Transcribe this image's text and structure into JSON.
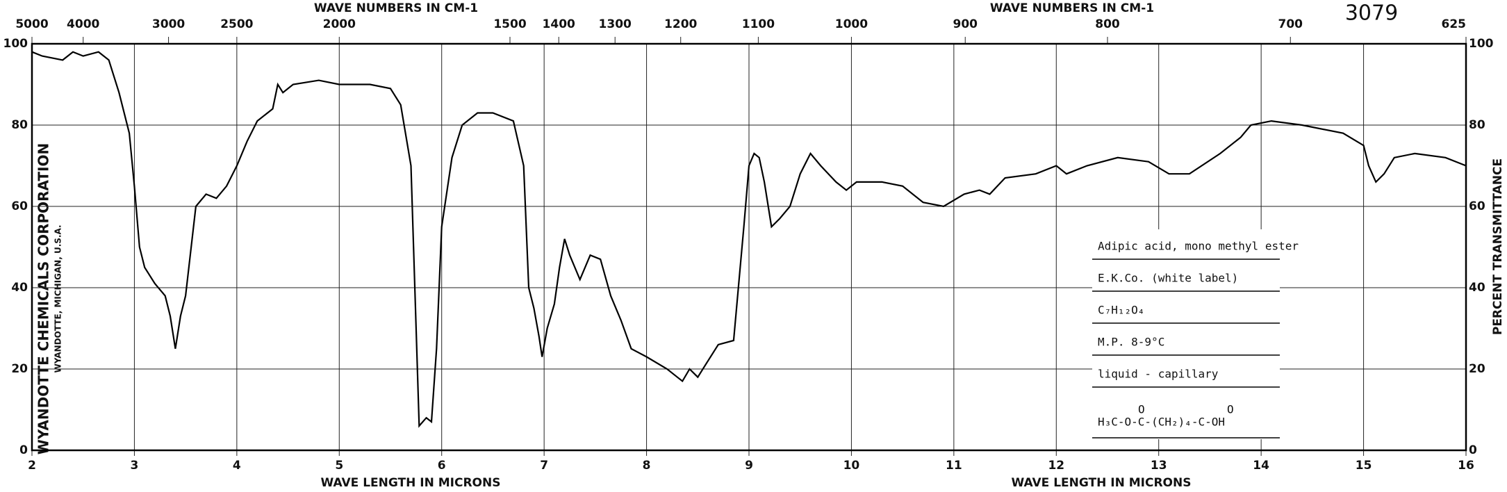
{
  "chart_data": {
    "type": "line",
    "x_title": "WAVE LENGTH IN MICRONS",
    "top_title": "WAVE NUMBERS IN CM-1",
    "y_title": "PERCENT TRANSMITTANCE",
    "spectrum_number": "3079",
    "company": "WYANDOTTE CHEMICALS CORPORATION",
    "company_location": "WYANDOTTE, MICHIGAN, U.S.A.",
    "sample_info": [
      "Adipic acid, mono methyl ester",
      "E.K.Co. (white label)",
      "C₇H₁₂O₄",
      "M.P. 8-9°C",
      "liquid - capillary"
    ],
    "formula": "H₃C-O-C-(CH₂)₄-C-OH",
    "formula_oxygen": [
      "O",
      "O"
    ],
    "xlim": [
      2,
      16
    ],
    "xticks": [
      2,
      3,
      4,
      5,
      6,
      7,
      8,
      9,
      10,
      11,
      12,
      13,
      14,
      15,
      16
    ],
    "top_ticks": [
      5000,
      4000,
      3000,
      2500,
      2000,
      1500,
      1400,
      1300,
      1200,
      1100,
      1000,
      900,
      800,
      700,
      625
    ],
    "ylim": [
      0,
      100
    ],
    "yticks": [
      0,
      20,
      40,
      60,
      80,
      100
    ],
    "grid": true,
    "x": [
      2.0,
      2.1,
      2.3,
      2.4,
      2.5,
      2.65,
      2.75,
      2.85,
      2.95,
      3.0,
      3.05,
      3.1,
      3.2,
      3.3,
      3.35,
      3.4,
      3.45,
      3.5,
      3.6,
      3.7,
      3.8,
      3.9,
      4.0,
      4.1,
      4.2,
      4.35,
      4.4,
      4.45,
      4.55,
      4.8,
      5.0,
      5.3,
      5.5,
      5.6,
      5.7,
      5.75,
      5.78,
      5.85,
      5.9,
      5.95,
      6.0,
      6.1,
      6.2,
      6.35,
      6.5,
      6.7,
      6.8,
      6.85,
      6.9,
      6.95,
      6.98,
      7.03,
      7.1,
      7.15,
      7.2,
      7.25,
      7.35,
      7.45,
      7.55,
      7.65,
      7.75,
      7.85,
      8.0,
      8.2,
      8.3,
      8.35,
      8.42,
      8.5,
      8.6,
      8.7,
      8.85,
      8.95,
      9.0,
      9.05,
      9.1,
      9.15,
      9.22,
      9.3,
      9.4,
      9.5,
      9.6,
      9.7,
      9.85,
      9.95,
      10.05,
      10.3,
      10.5,
      10.7,
      10.9,
      11.1,
      11.25,
      11.35,
      11.5,
      11.8,
      12.0,
      12.1,
      12.3,
      12.6,
      12.9,
      13.1,
      13.3,
      13.6,
      13.8,
      13.9,
      14.1,
      14.4,
      14.8,
      15.0,
      15.05,
      15.12,
      15.2,
      15.3,
      15.5,
      15.8,
      16.0
    ],
    "series": [
      {
        "color": "#000000",
        "values": [
          98,
          97,
          96,
          98,
          97,
          98,
          96,
          88,
          78,
          65,
          50,
          45,
          41,
          38,
          33,
          25,
          33,
          38,
          60,
          63,
          62,
          65,
          70,
          76,
          81,
          84,
          90,
          88,
          90,
          91,
          90,
          90,
          89,
          85,
          70,
          30,
          6,
          8,
          7,
          25,
          55,
          72,
          80,
          83,
          83,
          81,
          70,
          40,
          35,
          28,
          23,
          30,
          36,
          45,
          52,
          48,
          42,
          48,
          47,
          38,
          32,
          25,
          23,
          20,
          18,
          17,
          20,
          18,
          22,
          26,
          27,
          55,
          70,
          73,
          72,
          66,
          55,
          57,
          60,
          68,
          73,
          70,
          66,
          64,
          66,
          66,
          65,
          61,
          60,
          63,
          64,
          63,
          67,
          68,
          70,
          68,
          70,
          72,
          71,
          68,
          68,
          73,
          77,
          80,
          81,
          80,
          78,
          75,
          70,
          66,
          68,
          72,
          73,
          72,
          70
        ]
      }
    ]
  }
}
